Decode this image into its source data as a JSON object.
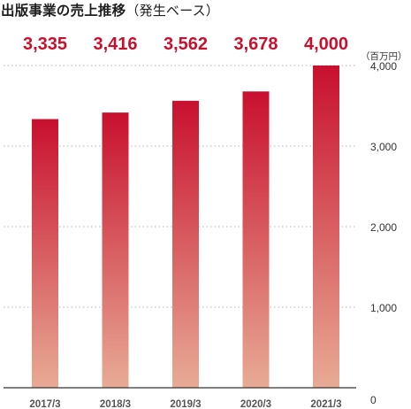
{
  "chart_data": {
    "type": "bar",
    "title": "出版事業の売上推移",
    "subtitle": "（発生ベース）",
    "unit": "（百万円）",
    "categories": [
      "2017/3",
      "2018/3",
      "2019/3",
      "2020/3",
      "2021/3"
    ],
    "values": [
      3335,
      3416,
      3562,
      3678,
      4000
    ],
    "value_labels": [
      "3,335",
      "3,416",
      "3,562",
      "3,678",
      "4,000"
    ],
    "y_ticks": [
      0,
      1000,
      2000,
      3000,
      4000
    ],
    "y_tick_labels": [
      "0",
      "1,000",
      "2,000",
      "3,000",
      "4,000"
    ],
    "ylim": [
      0,
      4000
    ],
    "grid": true,
    "colors": {
      "bar_top": "#c8102e",
      "bar_bottom": "#e8ab95",
      "value_text": "#c8102e",
      "grid": "#b5b5b5",
      "axis": "#333333"
    }
  }
}
